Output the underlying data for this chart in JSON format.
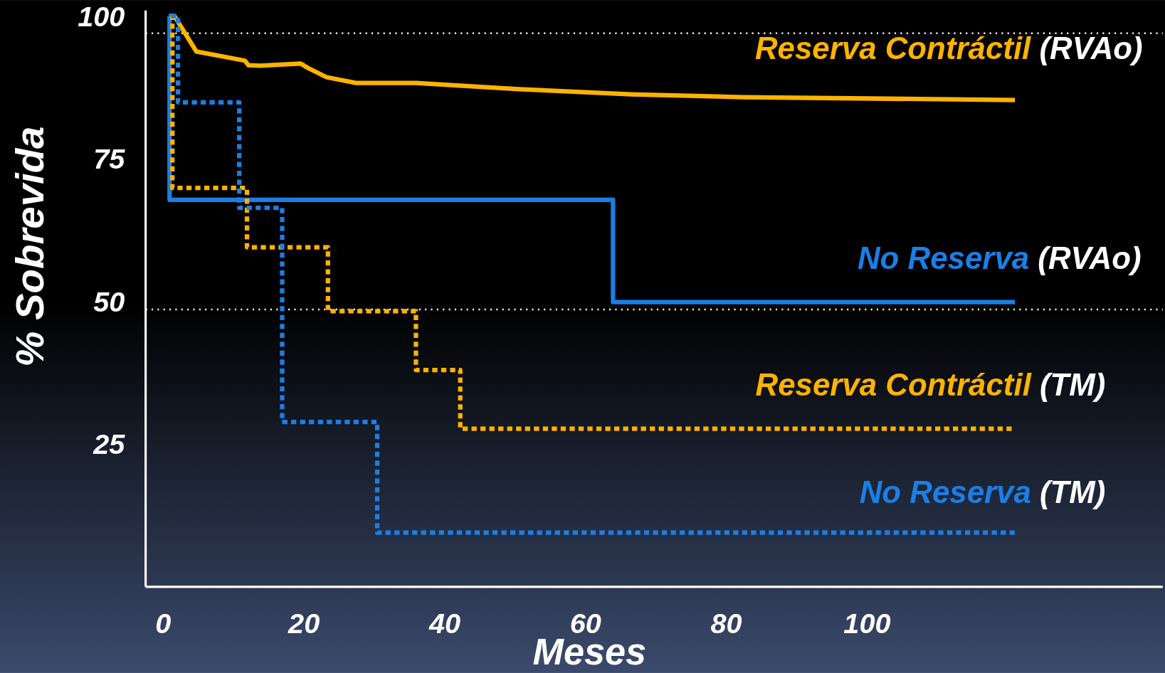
{
  "chart_data": {
    "type": "step",
    "xlabel": "Meses",
    "ylabel": "% Sobrevida",
    "xlim": [
      -2.5,
      142
    ],
    "ylim": [
      0,
      101
    ],
    "xticks": [
      0,
      20,
      40,
      60,
      80,
      100
    ],
    "yticks": [
      25,
      50,
      75,
      100
    ],
    "grid": false,
    "ref_lines": [
      {
        "axis": "y",
        "value": 97,
        "color": "#ffffff",
        "line_style": "dotted"
      },
      {
        "axis": "y",
        "value": 48.6,
        "color": "#ffffff",
        "line_style": "dotted"
      }
    ],
    "series": [
      {
        "name": "Reserva Contráctil (RVAo)",
        "type": "line",
        "line_style": "solid",
        "color": "#ffb300",
        "x": [
          0.8,
          1.6,
          4.7,
          11.6,
          12.1,
          13.7,
          19.5,
          20.6,
          23.2,
          27.4,
          35.9,
          50.6,
          66.5,
          82.3,
          121
        ],
        "values": [
          100,
          100,
          93.8,
          92.2,
          91.4,
          91.3,
          91.7,
          90.9,
          89.3,
          88.3,
          88.3,
          87.2,
          86.3,
          85.8,
          85.3
        ]
      },
      {
        "name": "No Reserva (RVAo)",
        "type": "step",
        "line_style": "solid",
        "color": "#1a7fe6",
        "x": [
          0.8,
          0.9,
          63.9,
          121
        ],
        "values": [
          100,
          67.8,
          49.9,
          49.9
        ]
      },
      {
        "name": "Reserva Contráctil (TM)",
        "type": "step",
        "line_style": "dotted",
        "color": "#ffb300",
        "x": [
          1.1,
          1.3,
          11.9,
          23.4,
          35.9,
          42.2,
          121
        ],
        "values": [
          100,
          69.9,
          59.5,
          48.3,
          38.0,
          27.7,
          27.7
        ]
      },
      {
        "name": "No Reserva (TM)",
        "type": "step",
        "line_style": "dotted",
        "color": "#1a7fe6",
        "x": [
          1.1,
          2.1,
          10.8,
          16.9,
          30.4,
          121
        ],
        "values": [
          100,
          84.9,
          66.4,
          28.9,
          9.5,
          9.5
        ]
      }
    ]
  }
}
